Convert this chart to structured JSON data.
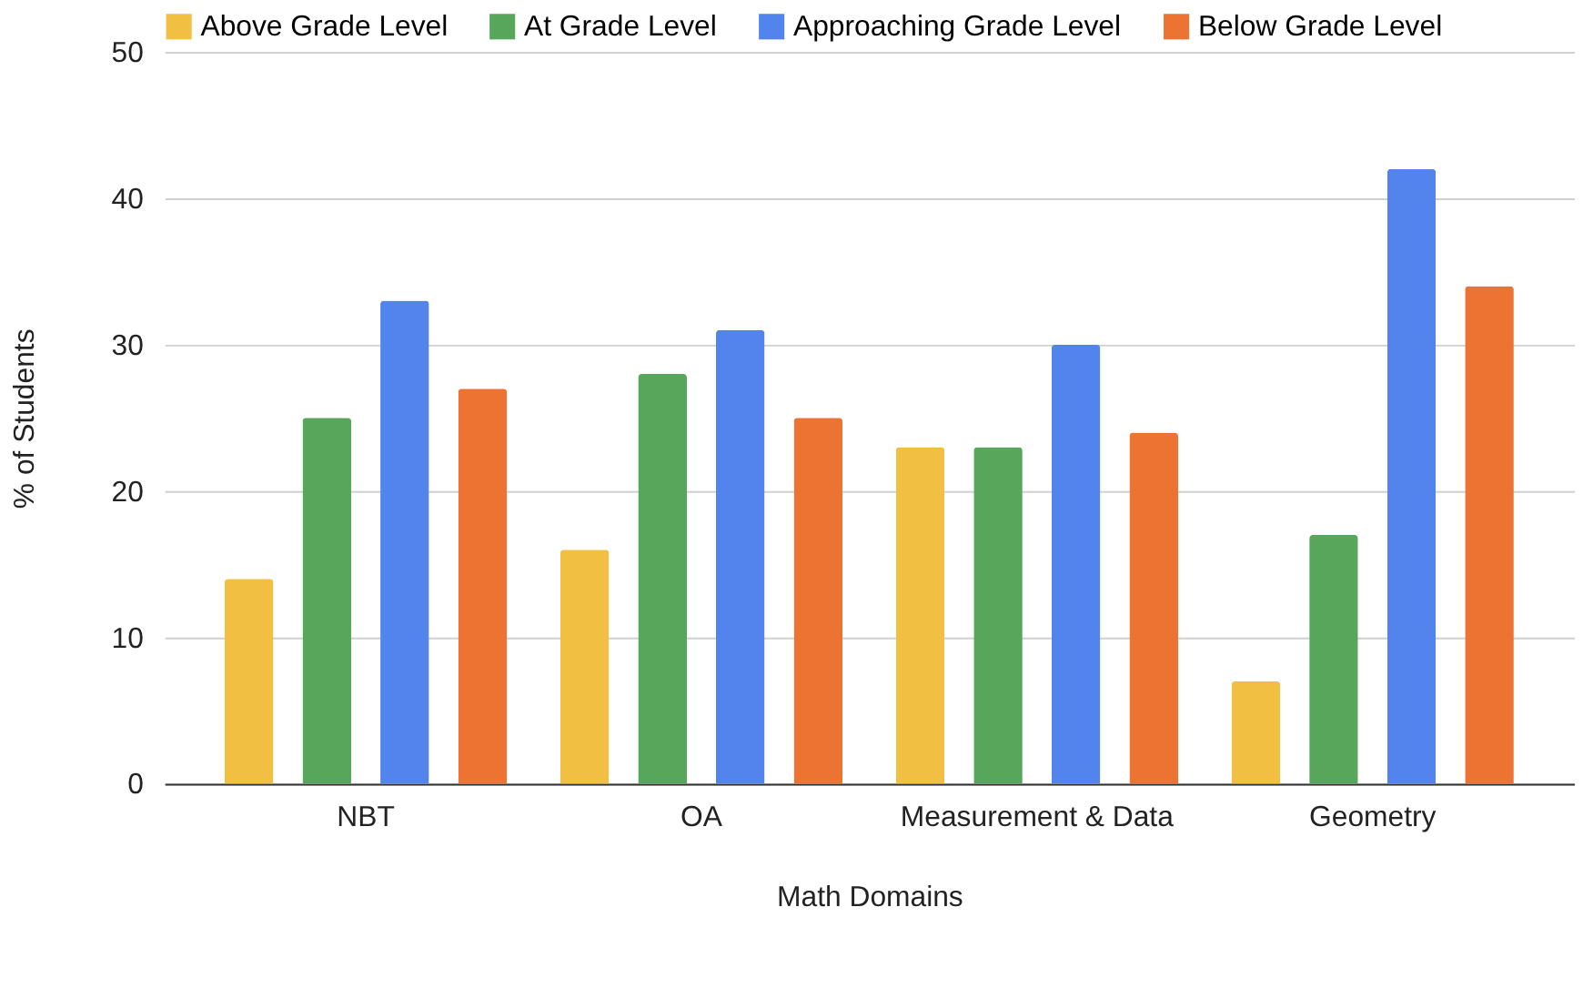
{
  "chart_data": {
    "type": "bar",
    "xlabel": "Math Domains",
    "ylabel": "% of Students",
    "categories": [
      "NBT",
      "OA",
      "Measurement & Data",
      "Geometry"
    ],
    "series": [
      {
        "name": "Above Grade Level",
        "color": "#f1bf42",
        "values": [
          14,
          16,
          23,
          7
        ]
      },
      {
        "name": "At Grade Level",
        "color": "#58a65c",
        "values": [
          25,
          28,
          23,
          17
        ]
      },
      {
        "name": "Approaching Grade Level",
        "color": "#5383ec",
        "values": [
          33,
          31,
          30,
          42
        ]
      },
      {
        "name": "Below Grade Level",
        "color": "#ed7332",
        "values": [
          27,
          25,
          24,
          34
        ]
      }
    ],
    "ylim": [
      0,
      50
    ],
    "yticks": [
      0,
      10,
      20,
      30,
      40,
      50
    ],
    "grid": "y",
    "legend": "top left"
  }
}
